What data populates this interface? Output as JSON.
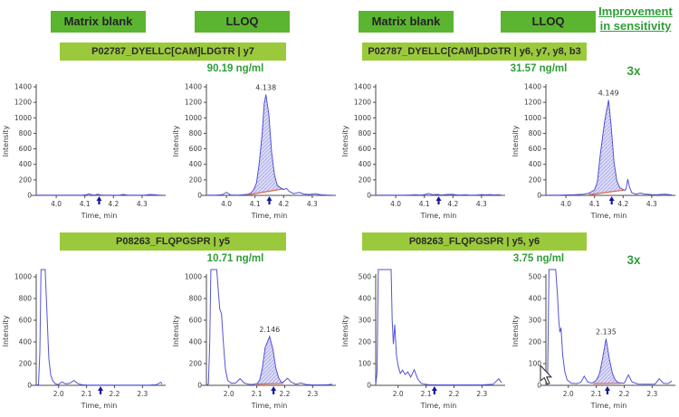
{
  "header": {
    "groups": [
      {
        "blank_label": "Matrix blank",
        "lloq_label": "LLOQ"
      },
      {
        "blank_label": "Matrix blank",
        "lloq_label": "LLOQ"
      }
    ],
    "improvement_line1": "Improvement",
    "improvement_line2": "in sensitivity"
  },
  "rows": [
    {
      "peptides": [
        {
          "bar": "P02787_DYELLC[CAM]LDGTR | y7",
          "conc": "90.19 ng/ml"
        },
        {
          "bar": "P02787_DYELLC[CAM]LDGTR | y6, y7, y8, b3",
          "conc": "31.57 ng/ml"
        }
      ],
      "improvement": "3x"
    },
    {
      "peptides": [
        {
          "bar": "P08263_FLQPGSPR | y5",
          "conc": "10.71 ng/ml"
        },
        {
          "bar": "P08263_FLQPGSPR | y5, y6",
          "conc": "3.75 ng/ml"
        }
      ],
      "improvement": "3x"
    }
  ],
  "colors": {
    "button_green": "#5cb531",
    "bar_green": "#9aca3b",
    "accent_green": "#2e9d36",
    "trace_blue": "#5353d6",
    "fill_lavender": "#dcdcf8",
    "hatch_blue": "#9b9be0",
    "baseline_red": "#e06a5a",
    "arrow_navy": "#16169c",
    "axis_gray": "#4a4a4a",
    "text_dark": "#3a3a3a"
  },
  "chart_data": [
    {
      "type": "line",
      "condition": "Matrix blank",
      "peptide": "P02787_DYELLC[CAM]LDGTR | y7",
      "xlabel": "Time, min",
      "ylabel": "Intensity",
      "xlim": [
        3.93,
        4.37
      ],
      "ylim": [
        0,
        1400
      ],
      "xticks": [
        4.0,
        4.1,
        4.2,
        4.3
      ],
      "yticks": [
        0,
        200,
        400,
        600,
        800,
        1000,
        1200,
        1400
      ],
      "arrow_x": 4.15,
      "trace": [
        [
          3.93,
          2
        ],
        [
          3.98,
          2
        ],
        [
          4.02,
          2
        ],
        [
          4.06,
          2
        ],
        [
          4.09,
          4
        ],
        [
          4.105,
          9
        ],
        [
          4.115,
          20
        ],
        [
          4.125,
          7
        ],
        [
          4.135,
          5
        ],
        [
          4.145,
          15
        ],
        [
          4.155,
          6
        ],
        [
          4.17,
          3
        ],
        [
          4.2,
          2
        ],
        [
          4.22,
          4
        ],
        [
          4.235,
          13
        ],
        [
          4.25,
          4
        ],
        [
          4.28,
          2
        ],
        [
          4.31,
          3
        ],
        [
          4.325,
          12
        ],
        [
          4.345,
          9
        ],
        [
          4.36,
          3
        ],
        [
          4.37,
          2
        ]
      ]
    },
    {
      "type": "line",
      "condition": "LLOQ",
      "peptide": "P02787_DYELLC[CAM]LDGTR | y7",
      "xlabel": "Time, min",
      "ylabel": "Intensity",
      "xlim": [
        3.93,
        4.37
      ],
      "ylim": [
        0,
        1400
      ],
      "xticks": [
        4.0,
        4.1,
        4.2,
        4.3
      ],
      "yticks": [
        0,
        200,
        400,
        600,
        800,
        1000,
        1200,
        1400
      ],
      "arrow_x": 4.15,
      "peak": {
        "x": 4.138,
        "y": 1300,
        "label": "4.138"
      },
      "fill": {
        "x0": 4.075,
        "x1": 4.2,
        "y0": 8,
        "y1": 85
      },
      "trace": [
        [
          3.93,
          2
        ],
        [
          3.96,
          3
        ],
        [
          3.985,
          8
        ],
        [
          4.0,
          38
        ],
        [
          4.015,
          6
        ],
        [
          4.04,
          4
        ],
        [
          4.06,
          8
        ],
        [
          4.075,
          14
        ],
        [
          4.085,
          30
        ],
        [
          4.095,
          70
        ],
        [
          4.105,
          160
        ],
        [
          4.115,
          420
        ],
        [
          4.125,
          800
        ],
        [
          4.132,
          1180
        ],
        [
          4.138,
          1300
        ],
        [
          4.148,
          1050
        ],
        [
          4.158,
          560
        ],
        [
          4.168,
          260
        ],
        [
          4.178,
          130
        ],
        [
          4.188,
          100
        ],
        [
          4.2,
          75
        ],
        [
          4.21,
          90
        ],
        [
          4.22,
          50
        ],
        [
          4.235,
          22
        ],
        [
          4.255,
          40
        ],
        [
          4.27,
          18
        ],
        [
          4.29,
          12
        ],
        [
          4.31,
          22
        ],
        [
          4.33,
          8
        ],
        [
          4.35,
          5
        ],
        [
          4.37,
          3
        ]
      ]
    },
    {
      "type": "line",
      "condition": "Matrix blank",
      "peptide": "P02787_DYELLC[CAM]LDGTR | y6, y7, y8, b3",
      "xlabel": "Time, min",
      "ylabel": "Intensity",
      "xlim": [
        3.93,
        4.37
      ],
      "ylim": [
        0,
        1400
      ],
      "xticks": [
        4.0,
        4.1,
        4.2,
        4.3
      ],
      "yticks": [
        0,
        200,
        400,
        600,
        800,
        1000,
        1200,
        1400
      ],
      "arrow_x": 4.15,
      "trace": [
        [
          3.93,
          2
        ],
        [
          3.97,
          3
        ],
        [
          4.0,
          3
        ],
        [
          4.03,
          4
        ],
        [
          4.055,
          6
        ],
        [
          4.07,
          9
        ],
        [
          4.085,
          5
        ],
        [
          4.1,
          11
        ],
        [
          4.115,
          24
        ],
        [
          4.13,
          9
        ],
        [
          4.145,
          13
        ],
        [
          4.16,
          6
        ],
        [
          4.18,
          12
        ],
        [
          4.195,
          14
        ],
        [
          4.21,
          8
        ],
        [
          4.225,
          5
        ],
        [
          4.245,
          9
        ],
        [
          4.26,
          4
        ],
        [
          4.285,
          6
        ],
        [
          4.3,
          11
        ],
        [
          4.315,
          7
        ],
        [
          4.33,
          11
        ],
        [
          4.345,
          6
        ],
        [
          4.36,
          9
        ],
        [
          4.37,
          4
        ]
      ]
    },
    {
      "type": "line",
      "condition": "LLOQ",
      "peptide": "P02787_DYELLC[CAM]LDGTR | y6, y7, y8, b3",
      "xlabel": "Time, min",
      "ylabel": "Intensity",
      "xlim": [
        3.93,
        4.37
      ],
      "ylim": [
        0,
        1400
      ],
      "xticks": [
        4.0,
        4.1,
        4.2,
        4.3
      ],
      "yticks": [
        0,
        200,
        400,
        600,
        800,
        1000,
        1200,
        1400
      ],
      "arrow_x": 4.16,
      "peak": {
        "x": 4.149,
        "y": 1230,
        "label": "4.149"
      },
      "fill": {
        "x0": 4.08,
        "x1": 4.205,
        "y0": 8,
        "y1": 70
      },
      "trace": [
        [
          3.93,
          3
        ],
        [
          3.97,
          4
        ],
        [
          4.0,
          6
        ],
        [
          4.03,
          8
        ],
        [
          4.06,
          14
        ],
        [
          4.08,
          28
        ],
        [
          4.1,
          70
        ],
        [
          4.11,
          180
        ],
        [
          4.12,
          520
        ],
        [
          4.135,
          950
        ],
        [
          4.149,
          1230
        ],
        [
          4.158,
          900
        ],
        [
          4.168,
          430
        ],
        [
          4.178,
          190
        ],
        [
          4.188,
          100
        ],
        [
          4.205,
          65
        ],
        [
          4.21,
          80
        ],
        [
          4.216,
          210
        ],
        [
          4.222,
          110
        ],
        [
          4.23,
          35
        ],
        [
          4.245,
          15
        ],
        [
          4.26,
          30
        ],
        [
          4.275,
          18
        ],
        [
          4.3,
          10
        ],
        [
          4.32,
          8
        ],
        [
          4.345,
          16
        ],
        [
          4.36,
          10
        ],
        [
          4.37,
          6
        ]
      ]
    },
    {
      "type": "line",
      "condition": "Matrix blank",
      "peptide": "P08263_FLQPGSPR | y5",
      "xlabel": "Time, min",
      "ylabel": "Intensity",
      "xlim": [
        1.92,
        2.37
      ],
      "ylim": [
        0,
        1000
      ],
      "xticks": [
        2.0,
        2.1,
        2.2,
        2.3
      ],
      "yticks": [
        0,
        200,
        400,
        600,
        800,
        1000
      ],
      "arrow_x": 2.15,
      "trace": [
        [
          1.92,
          2
        ],
        [
          1.928,
          6
        ],
        [
          1.933,
          300
        ],
        [
          1.937,
          1400
        ],
        [
          1.952,
          1400
        ],
        [
          1.958,
          700
        ],
        [
          1.965,
          250
        ],
        [
          1.972,
          90
        ],
        [
          1.98,
          40
        ],
        [
          1.99,
          12
        ],
        [
          2.0,
          8
        ],
        [
          2.012,
          32
        ],
        [
          2.025,
          14
        ],
        [
          2.04,
          18
        ],
        [
          2.055,
          45
        ],
        [
          2.07,
          14
        ],
        [
          2.085,
          5
        ],
        [
          2.1,
          3
        ],
        [
          2.14,
          2
        ],
        [
          2.18,
          2
        ],
        [
          2.22,
          2
        ],
        [
          2.26,
          2
        ],
        [
          2.3,
          2
        ],
        [
          2.33,
          3
        ],
        [
          2.35,
          6
        ],
        [
          2.365,
          28
        ],
        [
          2.37,
          12
        ]
      ]
    },
    {
      "type": "line",
      "condition": "LLOQ",
      "peptide": "P08263_FLQPGSPR | y5",
      "xlabel": "Time, min",
      "ylabel": "Intensity",
      "xlim": [
        1.92,
        2.37
      ],
      "ylim": [
        0,
        1000
      ],
      "xticks": [
        2.0,
        2.1,
        2.2,
        2.3
      ],
      "yticks": [
        0,
        200,
        400,
        600,
        800,
        1000
      ],
      "arrow_x": 2.16,
      "peak": {
        "x": 2.146,
        "y": 450,
        "label": "2.146"
      },
      "fill": {
        "x0": 2.1,
        "x1": 2.195,
        "y0": 12,
        "y1": 18
      },
      "trace": [
        [
          1.92,
          2
        ],
        [
          1.927,
          12
        ],
        [
          1.932,
          400
        ],
        [
          1.936,
          1400
        ],
        [
          1.957,
          1400
        ],
        [
          1.963,
          850
        ],
        [
          1.968,
          700
        ],
        [
          1.974,
          660
        ],
        [
          1.98,
          420
        ],
        [
          1.988,
          150
        ],
        [
          1.996,
          45
        ],
        [
          2.01,
          18
        ],
        [
          2.025,
          22
        ],
        [
          2.04,
          62
        ],
        [
          2.055,
          22
        ],
        [
          2.07,
          10
        ],
        [
          2.085,
          8
        ],
        [
          2.1,
          14
        ],
        [
          2.11,
          45
        ],
        [
          2.12,
          160
        ],
        [
          2.13,
          350
        ],
        [
          2.146,
          450
        ],
        [
          2.158,
          330
        ],
        [
          2.168,
          160
        ],
        [
          2.178,
          70
        ],
        [
          2.188,
          28
        ],
        [
          2.195,
          30
        ],
        [
          2.21,
          65
        ],
        [
          2.222,
          32
        ],
        [
          2.24,
          10
        ],
        [
          2.258,
          22
        ],
        [
          2.275,
          8
        ],
        [
          2.3,
          4
        ],
        [
          2.33,
          4
        ],
        [
          2.355,
          6
        ],
        [
          2.37,
          10
        ]
      ]
    },
    {
      "type": "line",
      "condition": "Matrix blank",
      "peptide": "P08263_FLQPGSPR | y5, y6",
      "xlabel": "Time, min",
      "ylabel": "Intensity",
      "xlim": [
        1.92,
        2.37
      ],
      "ylim": [
        0,
        500
      ],
      "xticks": [
        2.0,
        2.1,
        2.2,
        2.3
      ],
      "yticks": [
        0,
        100,
        200,
        300,
        400,
        500
      ],
      "arrow_x": 2.13,
      "trace": [
        [
          1.92,
          2
        ],
        [
          1.925,
          60
        ],
        [
          1.929,
          700
        ],
        [
          1.975,
          700
        ],
        [
          1.979,
          300
        ],
        [
          1.983,
          190
        ],
        [
          1.988,
          280
        ],
        [
          1.994,
          140
        ],
        [
          2.0,
          90
        ],
        [
          2.008,
          55
        ],
        [
          2.016,
          70
        ],
        [
          2.025,
          50
        ],
        [
          2.035,
          62
        ],
        [
          2.045,
          38
        ],
        [
          2.058,
          72
        ],
        [
          2.07,
          30
        ],
        [
          2.082,
          10
        ],
        [
          2.095,
          5
        ],
        [
          2.11,
          3
        ],
        [
          2.15,
          2
        ],
        [
          2.2,
          2
        ],
        [
          2.25,
          2
        ],
        [
          2.3,
          2
        ],
        [
          2.34,
          5
        ],
        [
          2.36,
          30
        ],
        [
          2.37,
          12
        ]
      ]
    },
    {
      "type": "line",
      "condition": "LLOQ",
      "peptide": "P08263_FLQPGSPR | y5, y6",
      "xlabel": "Time, min",
      "ylabel": "Intensity",
      "xlim": [
        1.92,
        2.37
      ],
      "ylim": [
        0,
        500
      ],
      "xticks": [
        2.0,
        2.1,
        2.2,
        2.3
      ],
      "yticks": [
        0,
        100,
        200,
        300,
        400,
        500
      ],
      "arrow_x": 2.14,
      "peak": {
        "x": 2.135,
        "y": 215,
        "label": "2.135"
      },
      "fill": {
        "x0": 2.09,
        "x1": 2.19,
        "y0": 8,
        "y1": 10
      },
      "trace": [
        [
          1.92,
          2
        ],
        [
          1.926,
          40
        ],
        [
          1.931,
          700
        ],
        [
          1.955,
          700
        ],
        [
          1.961,
          420
        ],
        [
          1.966,
          300
        ],
        [
          1.97,
          245
        ],
        [
          1.974,
          265
        ],
        [
          1.98,
          140
        ],
        [
          1.988,
          60
        ],
        [
          1.996,
          25
        ],
        [
          2.01,
          10
        ],
        [
          2.03,
          8
        ],
        [
          2.045,
          14
        ],
        [
          2.057,
          42
        ],
        [
          2.07,
          15
        ],
        [
          2.085,
          10
        ],
        [
          2.1,
          22
        ],
        [
          2.112,
          55
        ],
        [
          2.122,
          120
        ],
        [
          2.135,
          215
        ],
        [
          2.147,
          120
        ],
        [
          2.158,
          55
        ],
        [
          2.168,
          25
        ],
        [
          2.18,
          12
        ],
        [
          2.2,
          10
        ],
        [
          2.215,
          48
        ],
        [
          2.228,
          16
        ],
        [
          2.25,
          6
        ],
        [
          2.28,
          5
        ],
        [
          2.31,
          6
        ],
        [
          2.325,
          30
        ],
        [
          2.34,
          10
        ],
        [
          2.357,
          8
        ],
        [
          2.37,
          20
        ]
      ]
    }
  ]
}
